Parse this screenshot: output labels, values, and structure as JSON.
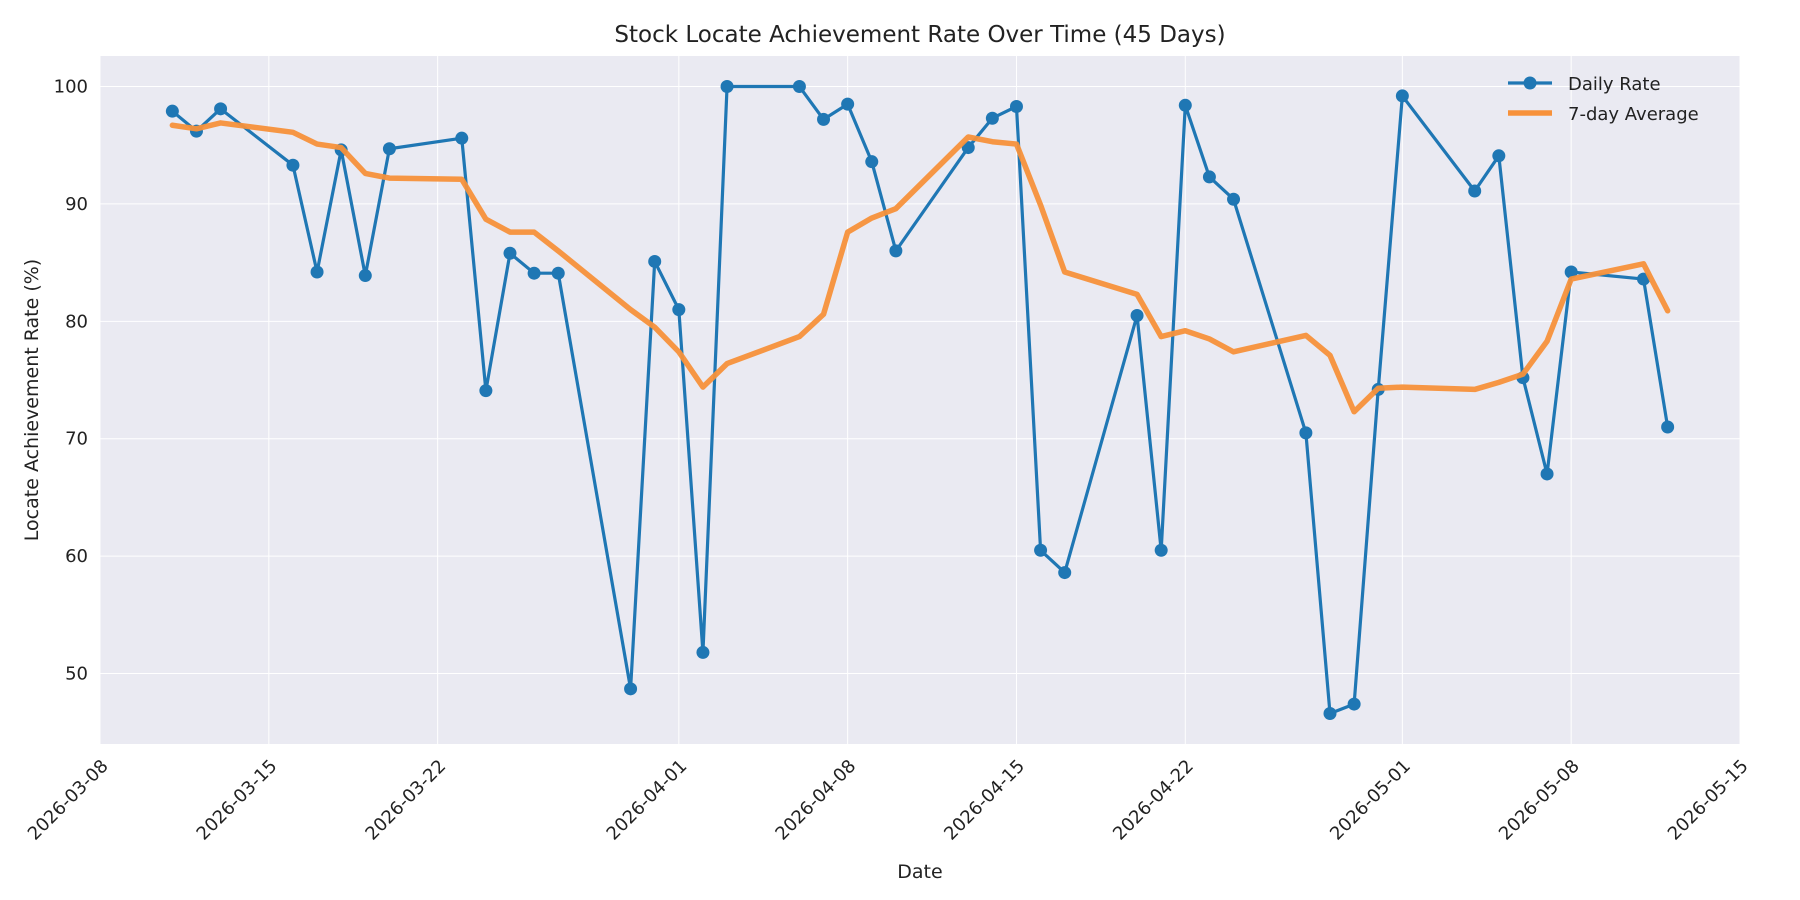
{
  "chart_data": {
    "type": "line",
    "title": "Stock Locate Achievement Rate Over Time (45 Days)",
    "xlabel": "Date",
    "ylabel": "Locate Achievement Rate (%)",
    "x_tick_labels": [
      "2026-03-08",
      "2026-03-15",
      "2026-03-22",
      "2026-04-01",
      "2026-04-08",
      "2026-04-15",
      "2026-04-22",
      "2026-05-01",
      "2026-05-08",
      "2026-05-15"
    ],
    "y_ticks": [
      50,
      60,
      70,
      80,
      90,
      100
    ],
    "xlim": [
      "2026-03-08",
      "2026-05-15"
    ],
    "ylim": [
      44,
      102.6
    ],
    "grid": true,
    "legend_position": "top-right",
    "colors": {
      "daily": "#1f77b4",
      "average": "#f7913a",
      "plot_bg": "#eaeaf2"
    },
    "x": [
      "2026-03-11",
      "2026-03-12",
      "2026-03-13",
      "2026-03-16",
      "2026-03-17",
      "2026-03-18",
      "2026-03-19",
      "2026-03-20",
      "2026-03-23",
      "2026-03-24",
      "2026-03-25",
      "2026-03-26",
      "2026-03-27",
      "2026-03-30",
      "2026-03-31",
      "2026-04-01",
      "2026-04-02",
      "2026-04-03",
      "2026-04-06",
      "2026-04-07",
      "2026-04-08",
      "2026-04-09",
      "2026-04-10",
      "2026-04-13",
      "2026-04-14",
      "2026-04-15",
      "2026-04-16",
      "2026-04-17",
      "2026-04-20",
      "2026-04-21",
      "2026-04-22",
      "2026-04-23",
      "2026-04-24",
      "2026-04-27",
      "2026-04-28",
      "2026-04-29",
      "2026-04-30",
      "2026-05-01",
      "2026-05-04",
      "2026-05-05",
      "2026-05-06",
      "2026-05-07",
      "2026-05-08",
      "2026-05-11",
      "2026-05-12"
    ],
    "series": [
      {
        "name": "Daily Rate",
        "values": [
          97.9,
          96.2,
          98.1,
          93.3,
          84.2,
          94.6,
          83.9,
          94.7,
          95.6,
          74.1,
          85.8,
          84.1,
          84.1,
          48.7,
          85.1,
          81.0,
          51.8,
          100.0,
          100.0,
          97.2,
          98.5,
          93.6,
          86.0,
          94.8,
          97.3,
          98.3,
          60.5,
          58.6,
          80.5,
          60.5,
          98.4,
          92.3,
          90.4,
          70.5,
          46.6,
          47.4,
          74.2,
          99.2,
          91.1,
          94.1,
          75.2,
          67.0,
          84.2,
          83.6,
          71.0
        ]
      },
      {
        "name": "7-day Average",
        "values": [
          96.7,
          96.4,
          96.9,
          96.1,
          95.1,
          94.8,
          92.6,
          92.2,
          92.1,
          88.7,
          87.6,
          87.6,
          86.0,
          81.0,
          79.5,
          77.4,
          74.4,
          76.4,
          78.7,
          80.6,
          87.6,
          88.8,
          89.6,
          95.7,
          95.3,
          95.1,
          89.9,
          84.2,
          82.3,
          78.7,
          79.2,
          78.5,
          77.4,
          78.8,
          77.1,
          72.3,
          74.3,
          74.4,
          74.2,
          74.8,
          75.5,
          78.3,
          83.6,
          84.9,
          80.9
        ]
      }
    ]
  }
}
